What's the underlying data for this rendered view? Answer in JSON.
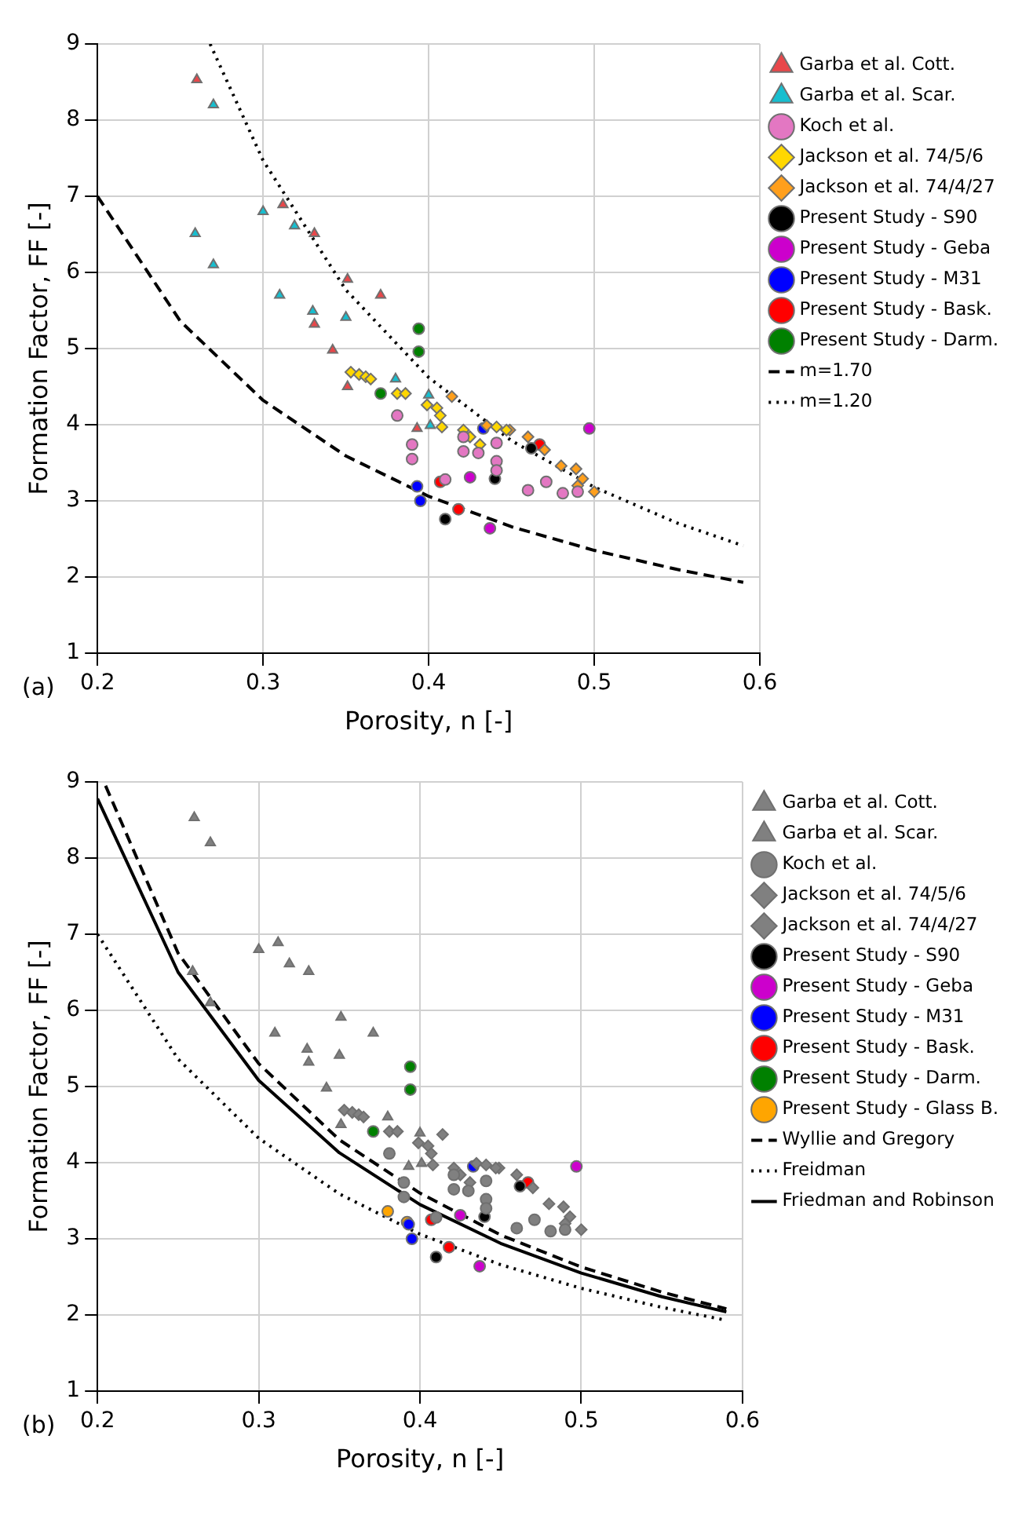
{
  "chart_data": [
    {
      "type": "scatter",
      "xlabel": "Porosity, n [-]",
      "ylabel": "Formation Factor, FF [-]",
      "annotations": [
        "(a)"
      ],
      "xlim": [
        0.2,
        0.6
      ],
      "xticks": [
        0.2,
        0.3,
        0.4,
        0.5,
        0.6
      ],
      "ylim": [
        1,
        9
      ],
      "yticks": [
        1,
        2,
        3,
        4,
        5,
        6,
        7,
        8,
        9
      ],
      "grid": true,
      "legend": "right",
      "series": [
        {
          "name": "Garba et al. Cott.",
          "color": "#e8474a",
          "marker": "triangle",
          "x": [
            0.26,
            0.312,
            0.331,
            0.351,
            0.371,
            0.331,
            0.342,
            0.351,
            0.393
          ],
          "values": [
            8.53,
            6.89,
            6.51,
            5.91,
            5.7,
            5.32,
            4.98,
            4.5,
            3.95
          ]
        },
        {
          "name": "Garba et al. Scar.",
          "color": "#17becf",
          "marker": "triangle",
          "x": [
            0.27,
            0.259,
            0.27,
            0.3,
            0.319,
            0.31,
            0.33,
            0.35,
            0.38,
            0.4,
            0.401
          ],
          "values": [
            8.2,
            6.51,
            6.1,
            6.8,
            6.61,
            5.7,
            5.49,
            5.41,
            4.6,
            4.39,
            3.99
          ]
        },
        {
          "name": "Koch et al.",
          "color": "#e377c2",
          "marker": "circle",
          "x": [
            0.381,
            0.39,
            0.39,
            0.421,
            0.43,
            0.441,
            0.441,
            0.441,
            0.46,
            0.471,
            0.481,
            0.49,
            0.421,
            0.41
          ],
          "values": [
            4.12,
            3.74,
            3.55,
            3.65,
            3.63,
            3.52,
            3.76,
            3.4,
            3.14,
            3.25,
            3.1,
            3.12,
            3.84,
            3.28
          ]
        },
        {
          "name": "Jackson et al. 74/5/6",
          "color": "#ffd700",
          "marker": "diamond",
          "x": [
            0.353,
            0.358,
            0.362,
            0.365,
            0.381,
            0.386,
            0.399,
            0.405,
            0.407,
            0.408,
            0.421,
            0.425,
            0.431,
            0.441,
            0.447
          ],
          "values": [
            4.69,
            4.66,
            4.63,
            4.6,
            4.41,
            4.41,
            4.26,
            4.22,
            4.12,
            3.97,
            3.93,
            3.84,
            3.74,
            3.97,
            3.93
          ]
        },
        {
          "name": "Jackson et al. 74/4/27",
          "color": "#ff9f1c",
          "marker": "diamond",
          "x": [
            0.414,
            0.435,
            0.449,
            0.46,
            0.47,
            0.48,
            0.489,
            0.493,
            0.5,
            0.49
          ],
          "values": [
            4.37,
            3.99,
            3.93,
            3.84,
            3.67,
            3.46,
            3.42,
            3.29,
            3.12,
            3.2
          ]
        },
        {
          "name": "Present Study - S90",
          "color": "#000000",
          "marker": "circle",
          "x": [
            0.462,
            0.44,
            0.41
          ],
          "values": [
            3.69,
            3.29,
            2.76
          ]
        },
        {
          "name": "Present Study - Geba",
          "color": "#cc00cc",
          "marker": "circle",
          "x": [
            0.497,
            0.425,
            0.437
          ],
          "values": [
            3.95,
            3.31,
            2.64
          ]
        },
        {
          "name": "Present Study - M31",
          "color": "#0000ff",
          "marker": "circle",
          "x": [
            0.433,
            0.393,
            0.395
          ],
          "values": [
            3.95,
            3.19,
            3.0
          ]
        },
        {
          "name": "Present Study - Bask.",
          "color": "#ff0000",
          "marker": "circle",
          "x": [
            0.467,
            0.407,
            0.418
          ],
          "values": [
            3.74,
            3.25,
            2.89
          ]
        },
        {
          "name": "Present Study - Darm.",
          "color": "#008000",
          "marker": "circle",
          "x": [
            0.394,
            0.394,
            0.371
          ],
          "values": [
            5.26,
            4.96,
            4.41
          ]
        },
        {
          "name": "m=1.70",
          "type": "line",
          "color": "#000000",
          "marker": "none",
          "line_style": "dashed",
          "x": [
            0.2,
            0.25,
            0.3,
            0.35,
            0.4,
            0.45,
            0.5,
            0.55,
            0.59
          ],
          "values": [
            7.0,
            5.36,
            4.32,
            3.59,
            3.06,
            2.66,
            2.35,
            2.1,
            1.93
          ]
        },
        {
          "name": "m=1.20",
          "type": "line",
          "color": "#000000",
          "marker": "none",
          "line_style": "dotted",
          "x": [
            0.268,
            0.3,
            0.35,
            0.4,
            0.45,
            0.5,
            0.55,
            0.59
          ],
          "values": [
            9.0,
            7.47,
            5.77,
            4.62,
            3.79,
            3.18,
            2.71,
            2.41
          ]
        }
      ]
    },
    {
      "type": "scatter",
      "xlabel": "Porosity, n [-]",
      "ylabel": "Formation Factor, FF [-]",
      "annotations": [
        "(b)"
      ],
      "xlim": [
        0.2,
        0.6
      ],
      "xticks": [
        0.2,
        0.3,
        0.4,
        0.5,
        0.6
      ],
      "ylim": [
        1,
        9
      ],
      "yticks": [
        1,
        2,
        3,
        4,
        5,
        6,
        7,
        8,
        9
      ],
      "grid": true,
      "legend": "right",
      "series": [
        {
          "name": "Garba et al. Cott.",
          "color": "#808080",
          "marker": "triangle",
          "x": [
            0.26,
            0.312,
            0.331,
            0.351,
            0.371,
            0.331,
            0.342,
            0.351,
            0.393
          ],
          "values": [
            8.53,
            6.89,
            6.51,
            5.91,
            5.7,
            5.32,
            4.98,
            4.5,
            3.95
          ]
        },
        {
          "name": "Garba et al. Scar.",
          "color": "#808080",
          "marker": "triangle",
          "x": [
            0.27,
            0.259,
            0.27,
            0.3,
            0.319,
            0.31,
            0.33,
            0.35,
            0.38,
            0.4,
            0.401
          ],
          "values": [
            8.2,
            6.51,
            6.1,
            6.8,
            6.61,
            5.7,
            5.49,
            5.41,
            4.6,
            4.39,
            3.99
          ]
        },
        {
          "name": "Koch et al.",
          "color": "#808080",
          "marker": "circle",
          "x": [
            0.381,
            0.39,
            0.39,
            0.421,
            0.43,
            0.441,
            0.441,
            0.441,
            0.46,
            0.471,
            0.481,
            0.49,
            0.421,
            0.41
          ],
          "values": [
            4.12,
            3.74,
            3.55,
            3.65,
            3.63,
            3.52,
            3.76,
            3.4,
            3.14,
            3.25,
            3.1,
            3.12,
            3.84,
            3.28
          ]
        },
        {
          "name": "Jackson et al. 74/5/6",
          "color": "#808080",
          "marker": "diamond",
          "x": [
            0.353,
            0.358,
            0.362,
            0.365,
            0.381,
            0.386,
            0.399,
            0.405,
            0.407,
            0.408,
            0.421,
            0.425,
            0.431,
            0.441,
            0.447
          ],
          "values": [
            4.69,
            4.66,
            4.63,
            4.6,
            4.41,
            4.41,
            4.26,
            4.22,
            4.12,
            3.97,
            3.93,
            3.84,
            3.74,
            3.97,
            3.93
          ]
        },
        {
          "name": "Jackson et al. 74/4/27",
          "color": "#808080",
          "marker": "diamond",
          "x": [
            0.414,
            0.435,
            0.449,
            0.46,
            0.47,
            0.48,
            0.489,
            0.493,
            0.5,
            0.49
          ],
          "values": [
            4.37,
            3.99,
            3.93,
            3.84,
            3.67,
            3.46,
            3.42,
            3.29,
            3.12,
            3.2
          ]
        },
        {
          "name": "Present Study - S90",
          "color": "#000000",
          "marker": "circle",
          "x": [
            0.462,
            0.44,
            0.41
          ],
          "values": [
            3.69,
            3.29,
            2.76
          ]
        },
        {
          "name": "Present Study - Geba",
          "color": "#cc00cc",
          "marker": "circle",
          "x": [
            0.497,
            0.425,
            0.437
          ],
          "values": [
            3.95,
            3.31,
            2.64
          ]
        },
        {
          "name": "Present Study - M31",
          "color": "#0000ff",
          "marker": "circle",
          "x": [
            0.433,
            0.393,
            0.395
          ],
          "values": [
            3.95,
            3.19,
            3.0
          ]
        },
        {
          "name": "Present Study - Bask.",
          "color": "#ff0000",
          "marker": "circle",
          "x": [
            0.467,
            0.407,
            0.418
          ],
          "values": [
            3.74,
            3.25,
            2.89
          ]
        },
        {
          "name": "Present Study - Darm.",
          "color": "#008000",
          "marker": "circle",
          "x": [
            0.394,
            0.394,
            0.371
          ],
          "values": [
            5.26,
            4.96,
            4.41
          ]
        },
        {
          "name": "Present Study - Glass B.",
          "color": "#ffa500",
          "marker": "circle",
          "x": [
            0.38,
            0.392
          ],
          "values": [
            3.36,
            3.22
          ]
        },
        {
          "name": "Wyllie and Gregory",
          "type": "line",
          "color": "#000000",
          "marker": "none",
          "line_style": "dashed",
          "x": [
            0.205,
            0.25,
            0.3,
            0.35,
            0.4,
            0.45,
            0.5,
            0.55,
            0.59
          ],
          "values": [
            8.95,
            6.75,
            5.3,
            4.3,
            3.6,
            3.05,
            2.63,
            2.3,
            2.08
          ]
        },
        {
          "name": "Freidman",
          "type": "line",
          "color": "#000000",
          "marker": "none",
          "line_style": "dotted",
          "x": [
            0.2,
            0.25,
            0.3,
            0.35,
            0.4,
            0.45,
            0.5,
            0.55,
            0.59
          ],
          "values": [
            7.0,
            5.36,
            4.32,
            3.59,
            3.06,
            2.66,
            2.35,
            2.1,
            1.93
          ]
        },
        {
          "name": "Friedman and Robinson",
          "type": "line",
          "color": "#000000",
          "marker": "none",
          "line_style": "solid",
          "x": [
            0.2,
            0.25,
            0.3,
            0.35,
            0.4,
            0.45,
            0.5,
            0.55,
            0.59
          ],
          "values": [
            8.78,
            6.5,
            5.08,
            4.13,
            3.45,
            2.94,
            2.55,
            2.24,
            2.04
          ]
        }
      ]
    }
  ]
}
